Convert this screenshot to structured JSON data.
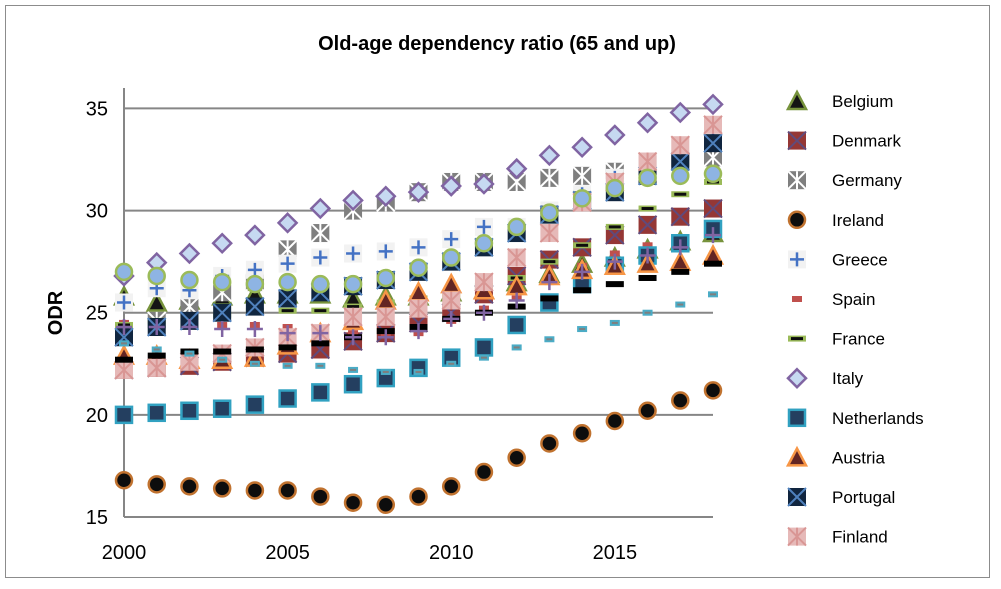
{
  "chart_data": {
    "type": "scatter",
    "title": "Old-age dependency ratio (65 and up)",
    "xlabel": "",
    "ylabel": "ODR",
    "xlim": [
      2000,
      2018
    ],
    "ylim": [
      15,
      36
    ],
    "xticks": [
      2000,
      2005,
      2010,
      2015
    ],
    "yticks": [
      15,
      20,
      25,
      30,
      35
    ],
    "grid": "horizontal",
    "legend": "right",
    "x": [
      2000,
      2001,
      2002,
      2003,
      2004,
      2005,
      2006,
      2007,
      2008,
      2009,
      2010,
      2011,
      2012,
      2013,
      2014,
      2015,
      2016,
      2017,
      2018
    ],
    "series": [
      {
        "name": "Belgium",
        "marker": "triangle",
        "fill": "#141414",
        "stroke": "#77933c",
        "values": [
          25.8,
          25.5,
          25.6,
          25.8,
          25.9,
          25.9,
          25.9,
          25.7,
          25.8,
          25.8,
          26.0,
          26.1,
          26.5,
          26.9,
          27.4,
          27.7,
          28.1,
          28.5,
          28.9
        ]
      },
      {
        "name": "Denmark",
        "marker": "square-x",
        "fill": "#953735",
        "stroke": "#604a7b",
        "values": [
          22.2,
          22.3,
          22.4,
          22.6,
          22.8,
          23.0,
          23.2,
          23.6,
          24.0,
          24.5,
          25.0,
          25.9,
          26.8,
          27.6,
          28.2,
          28.8,
          29.3,
          29.7,
          30.1
        ]
      },
      {
        "name": "Germany",
        "marker": "square-star",
        "fill": "#7f7f7f",
        "stroke": "#ffffff",
        "values": [
          23.9,
          24.6,
          25.3,
          26.0,
          26.5,
          28.1,
          28.9,
          30.0,
          30.4,
          30.9,
          31.4,
          31.4,
          31.4,
          31.6,
          31.7,
          31.9,
          32.3,
          32.5,
          32.6
        ]
      },
      {
        "name": "Ireland",
        "marker": "circle",
        "fill": "#0d0d0d",
        "stroke": "#c0722f",
        "values": [
          16.8,
          16.6,
          16.5,
          16.4,
          16.3,
          16.3,
          16.0,
          15.7,
          15.6,
          16.0,
          16.5,
          17.2,
          17.9,
          18.6,
          19.1,
          19.7,
          20.2,
          20.7,
          21.2
        ]
      },
      {
        "name": "Greece",
        "marker": "plus-box",
        "fill": "#f2f2f2",
        "stroke": "#4472c4",
        "values": [
          25.5,
          26.2,
          26.1,
          26.8,
          27.1,
          27.4,
          27.7,
          27.9,
          28.0,
          28.2,
          28.6,
          29.2,
          29.2,
          30.0,
          30.8,
          31.6,
          32.4,
          33.1,
          33.6
        ]
      },
      {
        "name": "Spain",
        "marker": "small-dash",
        "fill": "#c0504d",
        "stroke": "#c0504d",
        "values": [
          24.5,
          24.5,
          24.5,
          24.4,
          24.4,
          24.3,
          24.2,
          24.0,
          23.9,
          24.0,
          24.6,
          25.2,
          25.7,
          26.5,
          27.3,
          27.9,
          28.3,
          28.7,
          29.0
        ]
      },
      {
        "name": "France",
        "marker": "dash",
        "fill": "#9bbb59",
        "stroke": "#0d0d0d",
        "values": [
          24.4,
          24.6,
          24.8,
          24.9,
          25.1,
          25.1,
          25.1,
          25.3,
          25.5,
          25.7,
          25.9,
          26.3,
          26.7,
          27.5,
          28.3,
          29.2,
          30.1,
          30.8,
          31.4
        ]
      },
      {
        "name": "Italy",
        "marker": "diamond",
        "fill": "#c6d9f1",
        "stroke": "#8064a2",
        "values": [
          26.8,
          27.45,
          27.9,
          28.4,
          28.8,
          29.4,
          30.1,
          30.5,
          30.7,
          30.9,
          31.2,
          31.3,
          32.05,
          32.7,
          33.1,
          33.7,
          34.3,
          34.8,
          35.2
        ]
      },
      {
        "name": "Netherlands",
        "marker": "square",
        "fill": "#243f60",
        "stroke": "#31a1c1",
        "values": [
          20.0,
          20.1,
          20.2,
          20.3,
          20.5,
          20.8,
          21.1,
          21.5,
          21.8,
          22.3,
          22.8,
          23.3,
          24.4,
          25.5,
          26.4,
          27.3,
          27.8,
          28.4,
          29.1
        ]
      },
      {
        "name": "Austria",
        "marker": "triangle",
        "fill": "#632523",
        "stroke": "#f79646",
        "values": [
          22.9,
          22.9,
          22.7,
          22.7,
          22.8,
          23.4,
          24.0,
          24.6,
          25.6,
          26.0,
          26.4,
          26.1,
          26.3,
          26.8,
          27.1,
          27.3,
          27.4,
          27.5,
          27.8
        ]
      },
      {
        "name": "Portugal",
        "marker": "square-x",
        "fill": "#10253f",
        "stroke": "#4f81bd",
        "values": [
          23.8,
          24.3,
          24.6,
          25.0,
          25.3,
          25.7,
          26.0,
          26.3,
          26.6,
          27.0,
          27.5,
          28.2,
          28.9,
          29.8,
          30.5,
          30.9,
          31.7,
          32.4,
          33.3
        ]
      },
      {
        "name": "Finland",
        "marker": "square-star",
        "fill": "#e6b9b8",
        "stroke": "#d99694",
        "values": [
          22.2,
          22.3,
          22.6,
          23.0,
          23.3,
          23.8,
          24.0,
          24.8,
          24.8,
          25.2,
          25.6,
          26.5,
          27.7,
          28.9,
          30.4,
          31.4,
          32.4,
          33.2,
          34.2
        ]
      },
      {
        "marker": "circle",
        "fill": "#8eb4e3",
        "stroke": "#9bbb59",
        "values": [
          27.0,
          26.8,
          26.6,
          26.5,
          26.4,
          26.5,
          26.4,
          26.4,
          26.7,
          27.2,
          27.7,
          28.4,
          29.2,
          29.9,
          30.6,
          31.1,
          31.6,
          31.7,
          31.8
        ]
      },
      {
        "marker": "dash",
        "fill": "#000000",
        "stroke": "#000000",
        "values": [
          22.7,
          22.9,
          23.1,
          23.1,
          23.2,
          23.3,
          23.5,
          23.8,
          24.1,
          24.3,
          24.7,
          25.0,
          25.3,
          25.7,
          26.1,
          26.4,
          26.7,
          27.0,
          27.4
        ]
      },
      {
        "marker": "plus",
        "fill": "none",
        "stroke": "#8064a2",
        "values": [
          24.3,
          24.3,
          24.3,
          24.2,
          24.2,
          24.0,
          24.0,
          23.8,
          23.8,
          24.1,
          24.7,
          25.0,
          25.6,
          26.5,
          27.0,
          27.5,
          27.8,
          28.2,
          28.8
        ]
      },
      {
        "marker": "small-dash",
        "fill": "#4bacc6",
        "stroke": "#7f7f7f",
        "values": [
          23.5,
          23.2,
          23.0,
          22.7,
          22.5,
          22.4,
          22.4,
          22.2,
          22.1,
          22.1,
          22.5,
          22.8,
          23.3,
          23.7,
          24.2,
          24.5,
          25.0,
          25.4,
          25.9
        ]
      }
    ]
  }
}
